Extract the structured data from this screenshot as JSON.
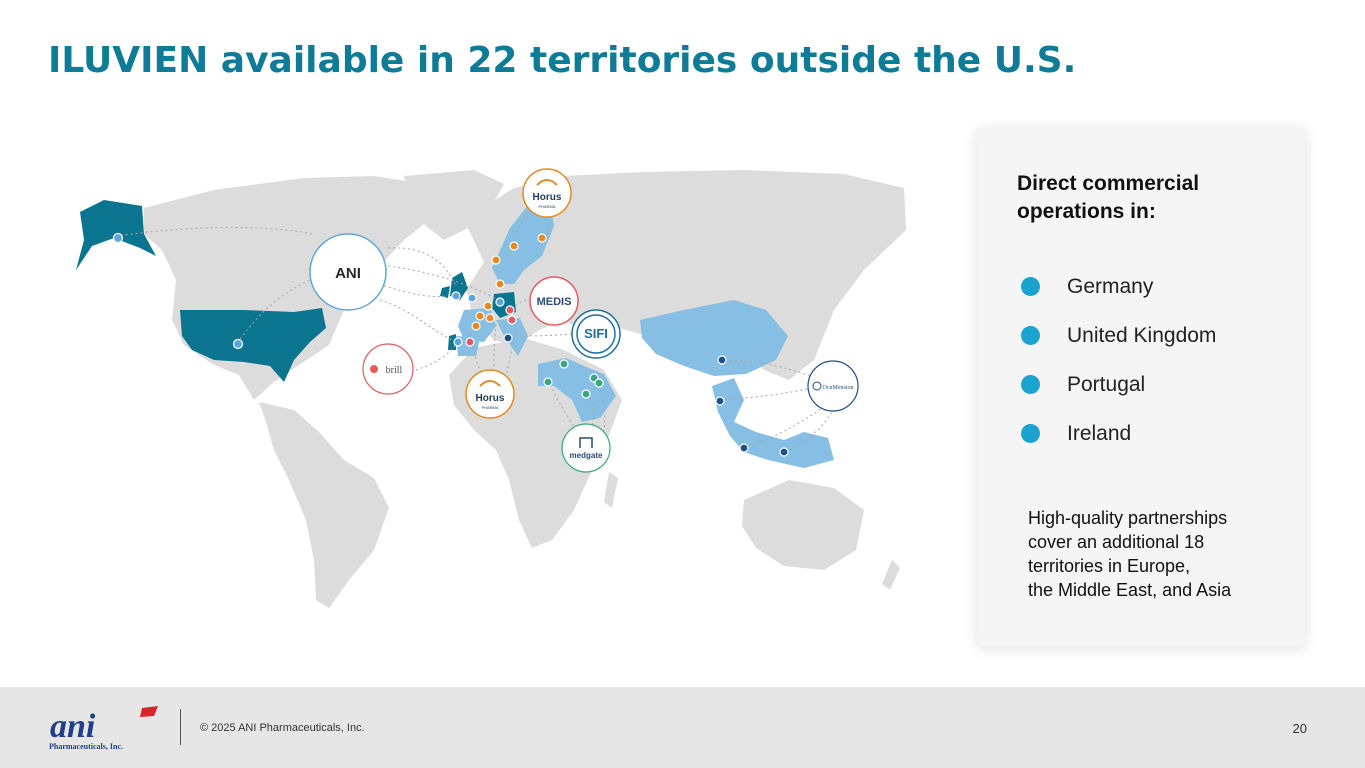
{
  "slide": {
    "title": "ILUVIEN available in 22 territories outside the U.S."
  },
  "map": {
    "partners": [
      {
        "id": "ani",
        "label": "ANI",
        "color": "#5aa6dc"
      },
      {
        "id": "horus-north",
        "label": "Horus",
        "sublabel": "PHARMA",
        "color": "#e58a22"
      },
      {
        "id": "medis",
        "label": "MEDIS",
        "color": "#e35a5f"
      },
      {
        "id": "sifi",
        "label": "SIFI",
        "color": "#1f6ea0"
      },
      {
        "id": "brill",
        "label": "brill",
        "color": "#e35a5f"
      },
      {
        "id": "horus-south",
        "label": "Horus",
        "sublabel": "PHARMA",
        "color": "#e58a22"
      },
      {
        "id": "medgate",
        "label": "medgate",
        "color": "#3aa67d"
      },
      {
        "id": "oxumension",
        "label": "OcuMension",
        "color": "#1f4f86"
      }
    ],
    "colors": {
      "land": "#dcdcdc",
      "direct": "#0b7590",
      "partner_territory": "#86bfe3",
      "connector": "#a6a6a6"
    }
  },
  "panel": {
    "heading": "Direct commercial operations in:",
    "items": [
      "Germany",
      "United Kingdom",
      "Portugal",
      "Ireland"
    ],
    "dot_color": "#1aa3cf",
    "note_lines": [
      "High-quality partnerships",
      "cover an additional 18",
      "territories in Europe,",
      "the Middle East, and Asia"
    ]
  },
  "footer": {
    "logo_text": "ani",
    "logo_subtext": "Pharmaceuticals, Inc.",
    "copyright": "© 2025 ANI Pharmaceuticals, Inc.",
    "page_number": "20"
  }
}
